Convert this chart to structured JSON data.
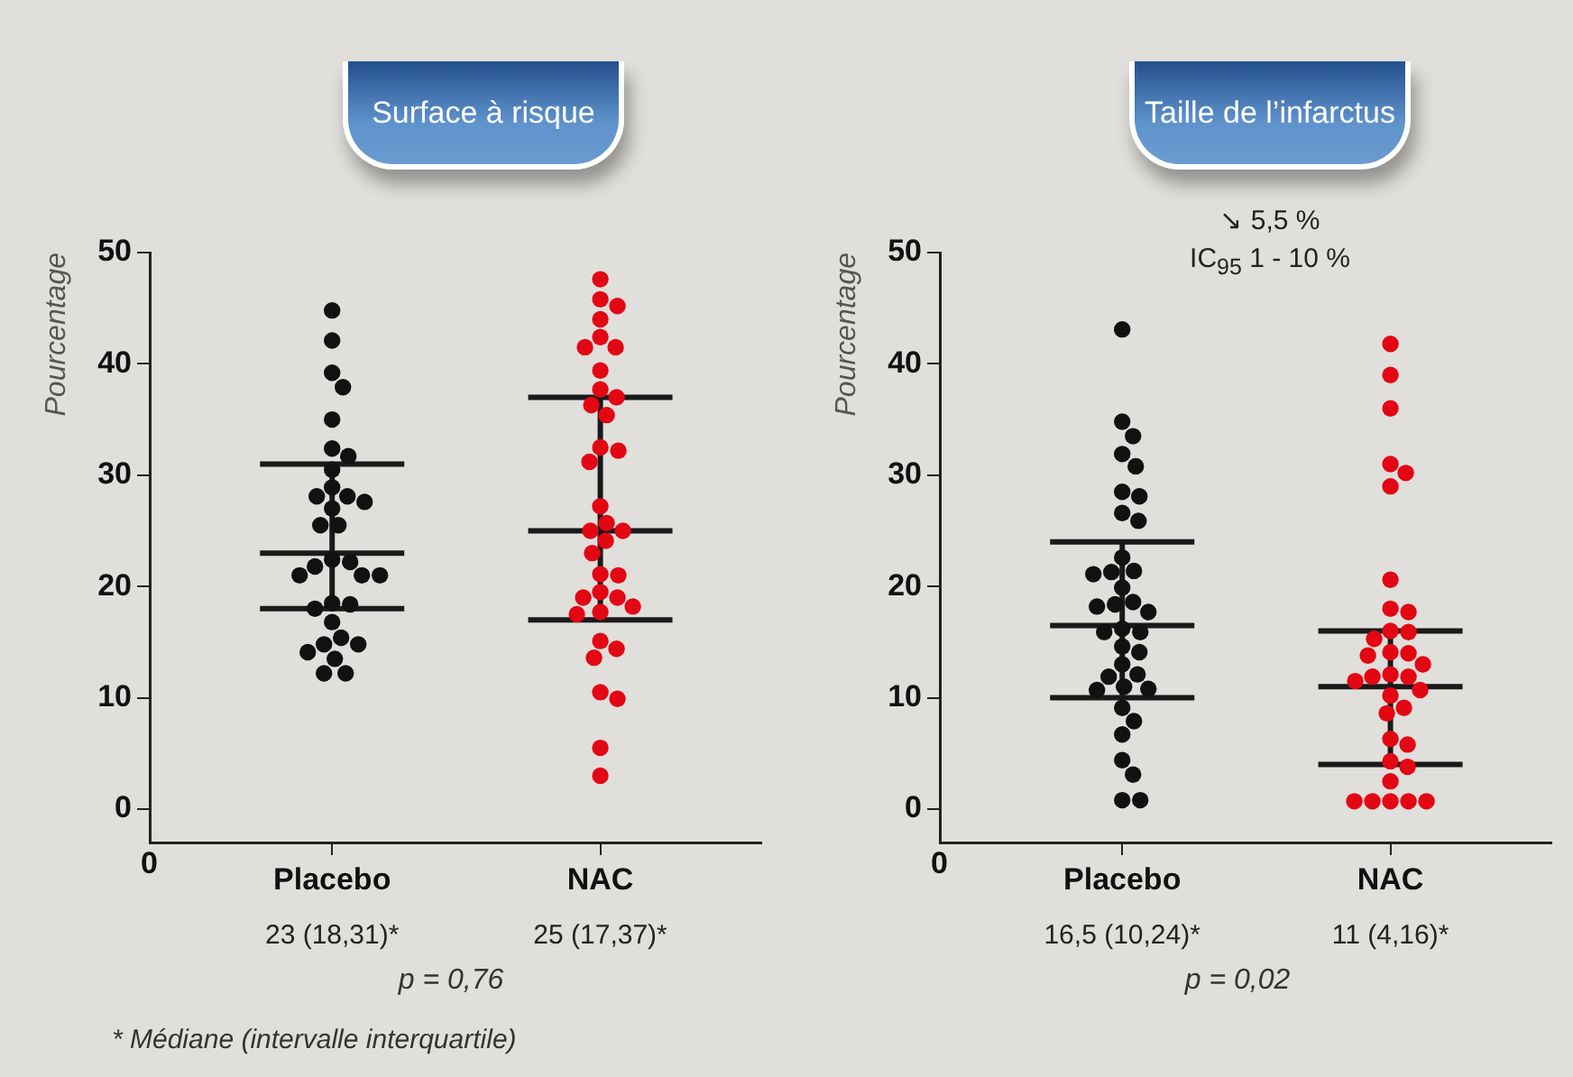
{
  "chart_data": [
    {
      "type": "scatter",
      "title": "Surface à risque",
      "ylabel": "Pourcentage",
      "categories": [
        "Placebo",
        "NAC"
      ],
      "ylim": [
        -3,
        50
      ],
      "yticks": [
        0,
        10,
        20,
        30,
        40,
        50
      ],
      "grid": false,
      "marker": "circle",
      "annotations": [
        "0",
        "23 (18,31)*",
        "25 (17,37)*",
        "p = 0,76",
        "* Médiane (intervalle interquartile)"
      ],
      "series": [
        {
          "color": "#111111",
          "x": [
            "Placebo",
            "Placebo",
            "Placebo",
            "Placebo",
            "Placebo",
            "Placebo",
            "Placebo",
            "Placebo",
            "Placebo",
            "Placebo",
            "Placebo",
            "Placebo",
            "Placebo",
            "Placebo",
            "Placebo",
            "Placebo",
            "Placebo",
            "Placebo",
            "Placebo",
            "Placebo",
            "Placebo",
            "Placebo",
            "Placebo",
            "Placebo",
            "Placebo",
            "Placebo",
            "Placebo",
            "Placebo",
            "Placebo",
            "Placebo",
            "Placebo",
            "Placebo"
          ],
          "values": [
            44.8,
            42.1,
            39.2,
            37.9,
            35.0,
            32.4,
            31.7,
            30.5,
            28.9,
            28.1,
            28.1,
            27.6,
            27.0,
            25.5,
            25.5,
            22.4,
            22.2,
            21.8,
            21.0,
            21.0,
            21.0,
            18.5,
            18.4,
            18.0,
            16.8,
            15.4,
            14.8,
            14.8,
            14.1,
            13.5,
            12.2,
            12.2
          ]
        },
        {
          "color": "#e30613",
          "x": [
            "NAC",
            "NAC",
            "NAC",
            "NAC",
            "NAC",
            "NAC",
            "NAC",
            "NAC",
            "NAC",
            "NAC",
            "NAC",
            "NAC",
            "NAC",
            "NAC",
            "NAC",
            "NAC",
            "NAC",
            "NAC",
            "NAC",
            "NAC",
            "NAC",
            "NAC",
            "NAC",
            "NAC",
            "NAC",
            "NAC",
            "NAC",
            "NAC",
            "NAC",
            "NAC",
            "NAC",
            "NAC",
            "NAC",
            "NAC",
            "NAC",
            "NAC"
          ],
          "values": [
            47.6,
            45.8,
            45.2,
            44.0,
            42.4,
            41.5,
            41.5,
            39.4,
            37.7,
            37.0,
            36.3,
            35.4,
            32.5,
            32.2,
            31.2,
            27.2,
            25.7,
            25.0,
            25.0,
            24.1,
            23.0,
            21.1,
            21.0,
            19.5,
            19.0,
            19.0,
            18.2,
            17.7,
            17.5,
            15.1,
            14.4,
            13.6,
            10.5,
            9.9,
            5.5,
            3.0
          ]
        },
        {
          "type": "box",
          "color": "#1a1a1a",
          "boxes": [
            {
              "low": 18,
              "q1": 18,
              "median": 23,
              "q3": 31,
              "high": 31
            },
            {
              "low": 17,
              "q1": 17,
              "median": 25,
              "q3": 37,
              "high": 37
            }
          ]
        }
      ]
    },
    {
      "type": "scatter",
      "title": "Taille de l’infarctus",
      "subtitle": "↘ 5,5 %\nIC$_{95}$ 1 - 10 %",
      "ylabel": "Pourcentage",
      "categories": [
        "Placebo",
        "NAC"
      ],
      "ylim": [
        -3,
        50
      ],
      "yticks": [
        0,
        10,
        20,
        30,
        40,
        50
      ],
      "grid": false,
      "marker": "circle",
      "annotations": [
        "0",
        "16,5 (10,24)*",
        "11 (4,16)*",
        "p = 0,02"
      ],
      "series": [
        {
          "color": "#111111",
          "x": [
            "Placebo",
            "Placebo",
            "Placebo",
            "Placebo",
            "Placebo",
            "Placebo",
            "Placebo",
            "Placebo",
            "Placebo",
            "Placebo",
            "Placebo",
            "Placebo",
            "Placebo",
            "Placebo",
            "Placebo",
            "Placebo",
            "Placebo",
            "Placebo",
            "Placebo",
            "Placebo",
            "Placebo",
            "Placebo",
            "Placebo",
            "Placebo",
            "Placebo",
            "Placebo",
            "Placebo",
            "Placebo",
            "Placebo",
            "Placebo",
            "Placebo",
            "Placebo",
            "Placebo",
            "Placebo",
            "Placebo",
            "Placebo"
          ],
          "values": [
            43.1,
            34.8,
            33.5,
            31.9,
            30.8,
            28.5,
            28.1,
            26.6,
            25.9,
            22.6,
            21.4,
            21.3,
            21.1,
            19.9,
            18.6,
            18.4,
            18.2,
            17.7,
            16.2,
            15.9,
            15.9,
            14.6,
            14.1,
            13.0,
            12.1,
            11.9,
            11.0,
            10.8,
            10.7,
            9.1,
            7.9,
            6.7,
            4.4,
            3.1,
            0.8,
            0.8
          ]
        },
        {
          "color": "#e30613",
          "x": [
            "NAC",
            "NAC",
            "NAC",
            "NAC",
            "NAC",
            "NAC",
            "NAC",
            "NAC",
            "NAC",
            "NAC",
            "NAC",
            "NAC",
            "NAC",
            "NAC",
            "NAC",
            "NAC",
            "NAC",
            "NAC",
            "NAC",
            "NAC",
            "NAC",
            "NAC",
            "NAC",
            "NAC",
            "NAC",
            "NAC",
            "NAC",
            "NAC",
            "NAC",
            "NAC",
            "NAC",
            "NAC",
            "NAC",
            "NAC"
          ],
          "values": [
            41.8,
            39.0,
            36.0,
            31.0,
            30.2,
            29.0,
            20.6,
            18.0,
            17.7,
            16.0,
            15.9,
            15.3,
            14.1,
            14.0,
            13.8,
            13.0,
            12.1,
            11.9,
            11.9,
            11.5,
            10.7,
            10.2,
            9.1,
            8.6,
            6.3,
            5.8,
            4.3,
            3.8,
            2.5,
            0.7,
            0.7,
            0.7,
            0.7,
            0.7
          ]
        },
        {
          "type": "box",
          "color": "#1a1a1a",
          "boxes": [
            {
              "low": 10,
              "q1": 10,
              "median": 16.5,
              "q3": 24,
              "high": 24
            },
            {
              "low": 4,
              "q1": 4,
              "median": 11,
              "q3": 16,
              "high": 16
            }
          ]
        }
      ]
    }
  ]
}
